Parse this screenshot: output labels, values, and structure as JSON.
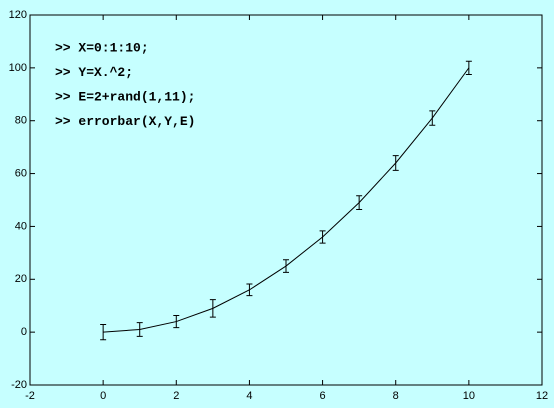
{
  "chart_data": {
    "type": "errorbar",
    "annotations": [
      ">> X=0:1:10;",
      ">> Y=X.^2;",
      ">> E=2+rand(1,11);",
      ">> errorbar(X,Y,E)"
    ],
    "x": [
      0,
      1,
      2,
      3,
      4,
      5,
      6,
      7,
      8,
      9,
      10
    ],
    "series": [
      {
        "color": "#000000",
        "values": [
          0,
          1,
          4,
          9,
          16,
          25,
          36,
          49,
          64,
          81,
          100
        ],
        "errors": [
          2.9,
          2.6,
          2.3,
          3.3,
          2.2,
          2.4,
          2.3,
          2.6,
          2.8,
          2.7,
          2.5
        ]
      }
    ],
    "xlim": [
      -2,
      12
    ],
    "xticks": [
      -2,
      0,
      2,
      4,
      6,
      8,
      10,
      12
    ],
    "ylim": [
      -20,
      120
    ],
    "yticks": [
      -20,
      0,
      20,
      40,
      60,
      80,
      100,
      120
    ],
    "grid": false,
    "background": "#c6ffff"
  }
}
